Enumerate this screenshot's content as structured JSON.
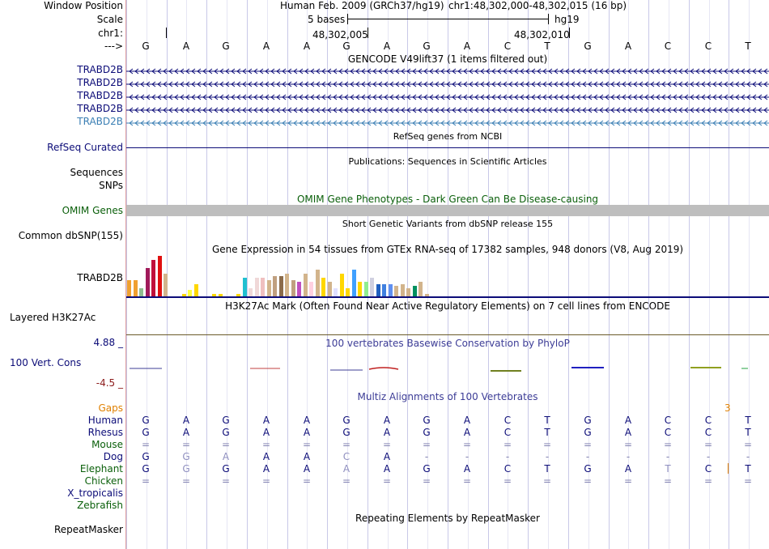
{
  "labels": {
    "window_position": "Window Position",
    "scale": "Scale",
    "chrom": "chr1:",
    "strand": "--->",
    "gencode_genes": [
      "TRABD2B",
      "TRABD2B",
      "TRABD2B",
      "TRABD2B",
      "TRABD2B"
    ],
    "refseq": "RefSeq Curated",
    "sequences": "Sequences",
    "snps": "SNPs",
    "omim": "OMIM Genes",
    "dbsnp": "Common dbSNP(155)",
    "gtex": "TRABD2B",
    "h3k27ac": "Layered H3K27Ac",
    "phylop_max": "4.88 _",
    "phylop_label": "100 Vert. Cons",
    "phylop_min": "-4.5 _",
    "gaps": "Gaps",
    "species": [
      "Human",
      "Rhesus",
      "Mouse",
      "Dog",
      "Elephant",
      "Chicken",
      "X_tropicalis",
      "Zebrafish"
    ],
    "repeatmasker": "RepeatMasker"
  },
  "header": {
    "assembly": "Human Feb. 2009 (GRCh37/hg19)",
    "position": "chr1:48,302,000-48,302,015 (16 bp)",
    "scale_text": "5 bases",
    "scale_db": "hg19",
    "ruler_ticks": [
      "48,302,005",
      "48,302,010"
    ]
  },
  "sequence": [
    "G",
    "A",
    "G",
    "A",
    "A",
    "G",
    "A",
    "G",
    "A",
    "C",
    "T",
    "G",
    "A",
    "C",
    "C",
    "T"
  ],
  "tracks": {
    "gencode": "GENCODE V49lift37 (1 items filtered out)",
    "refseq": "RefSeq genes from NCBI",
    "publications": "Publications: Sequences in Scientific Articles",
    "omim": "OMIM Gene Phenotypes - Dark Green Can Be Disease-causing",
    "dbsnp": "Short Genetic Variants from dbSNP release 155",
    "gtex": "Gene Expression in 54 tissues from GTEx RNA-seq of 17382 samples, 948 donors (V8, Aug 2019)",
    "h3k27ac": "H3K27Ac Mark (Often Found Near Active Regulatory Elements) on 7 cell lines from ENCODE",
    "phylop": "100 vertebrates Basewise Conservation by PhyloP",
    "multiz": "Multiz Alignments of 100 Vertebrates",
    "repeatmasker": "Repeating Elements by RepeatMasker"
  },
  "gaps_value": "3",
  "gtex_values": [
    8,
    8,
    4,
    14,
    18,
    20,
    11,
    0,
    0,
    1,
    3,
    6,
    0,
    0,
    1,
    1,
    0,
    0,
    1,
    9,
    4,
    9,
    9,
    8,
    10,
    10,
    11,
    8,
    7,
    11,
    7,
    13,
    9,
    7,
    4,
    11,
    4,
    13,
    7,
    7,
    9,
    6,
    6,
    6,
    5,
    6,
    4,
    5,
    7,
    1
  ],
  "gtex_colors": [
    "#f0a030",
    "#f0a030",
    "#8fbc8f",
    "#a01a5a",
    "#c0103a",
    "#e01010",
    "#d2b48c",
    "#ffd700",
    "#ffd700",
    "#ffd700",
    "#ffff40",
    "#ffd700",
    "#ffff40",
    "#ffff40",
    "#ffd700",
    "#ffd700",
    "#ffff40",
    "#d2b48c",
    "#ffd700",
    "#20c0d0",
    "#f0d8d8",
    "#f0d8d8",
    "#f0c0c0",
    "#d2b48c",
    "#c0a080",
    "#8b6b4a",
    "#d2b48c",
    "#c0a080",
    "#c050c0",
    "#d2b48c",
    "#ffd0e0",
    "#d2b48c",
    "#ffd700",
    "#d2b48c",
    "#e0e0ff",
    "#ffd700",
    "#ffd700",
    "#40a0ff",
    "#ffd700",
    "#90ee90",
    "#d0d0e0",
    "#2060c0",
    "#4080e0",
    "#6090f0",
    "#d2b48c",
    "#d2b48c",
    "#d2b48c",
    "#009060",
    "#d2b48c",
    "#d2b48c"
  ],
  "alignment": {
    "Human": [
      "G",
      "A",
      "G",
      "A",
      "A",
      "G",
      "A",
      "G",
      "A",
      "C",
      "T",
      "G",
      "A",
      "C",
      "C",
      "T"
    ],
    "Rhesus": [
      "G",
      "A",
      "G",
      "A",
      "A",
      "G",
      "A",
      "G",
      "A",
      "C",
      "T",
      "G",
      "A",
      "C",
      "C",
      "T"
    ],
    "Mouse": [
      "=",
      "=",
      "=",
      "=",
      "=",
      "=",
      "=",
      "=",
      "=",
      "=",
      "=",
      "=",
      "=",
      "=",
      "=",
      "="
    ],
    "Dog": [
      "G",
      "G",
      "A",
      "A",
      "A",
      "C",
      "A",
      "-",
      "-",
      "-",
      "-",
      "-",
      "-",
      "-",
      "-",
      "-"
    ],
    "Elephant": [
      "G",
      "G",
      "G",
      "A",
      "A",
      "A",
      "A",
      "G",
      "A",
      "C",
      "T",
      "G",
      "A",
      "T",
      "C",
      "T"
    ],
    "Chicken": [
      "=",
      "=",
      "=",
      "=",
      "=",
      "=",
      "=",
      "=",
      "=",
      "=",
      "=",
      "=",
      "=",
      "=",
      "=",
      "="
    ]
  },
  "colors": {
    "label_blue": "#0c0c78",
    "label_green": "#0a5f0a",
    "gaps_orange": "#e08000",
    "phylop_red": "#8b1a1a",
    "phylop_blue": "#3c3c96"
  }
}
